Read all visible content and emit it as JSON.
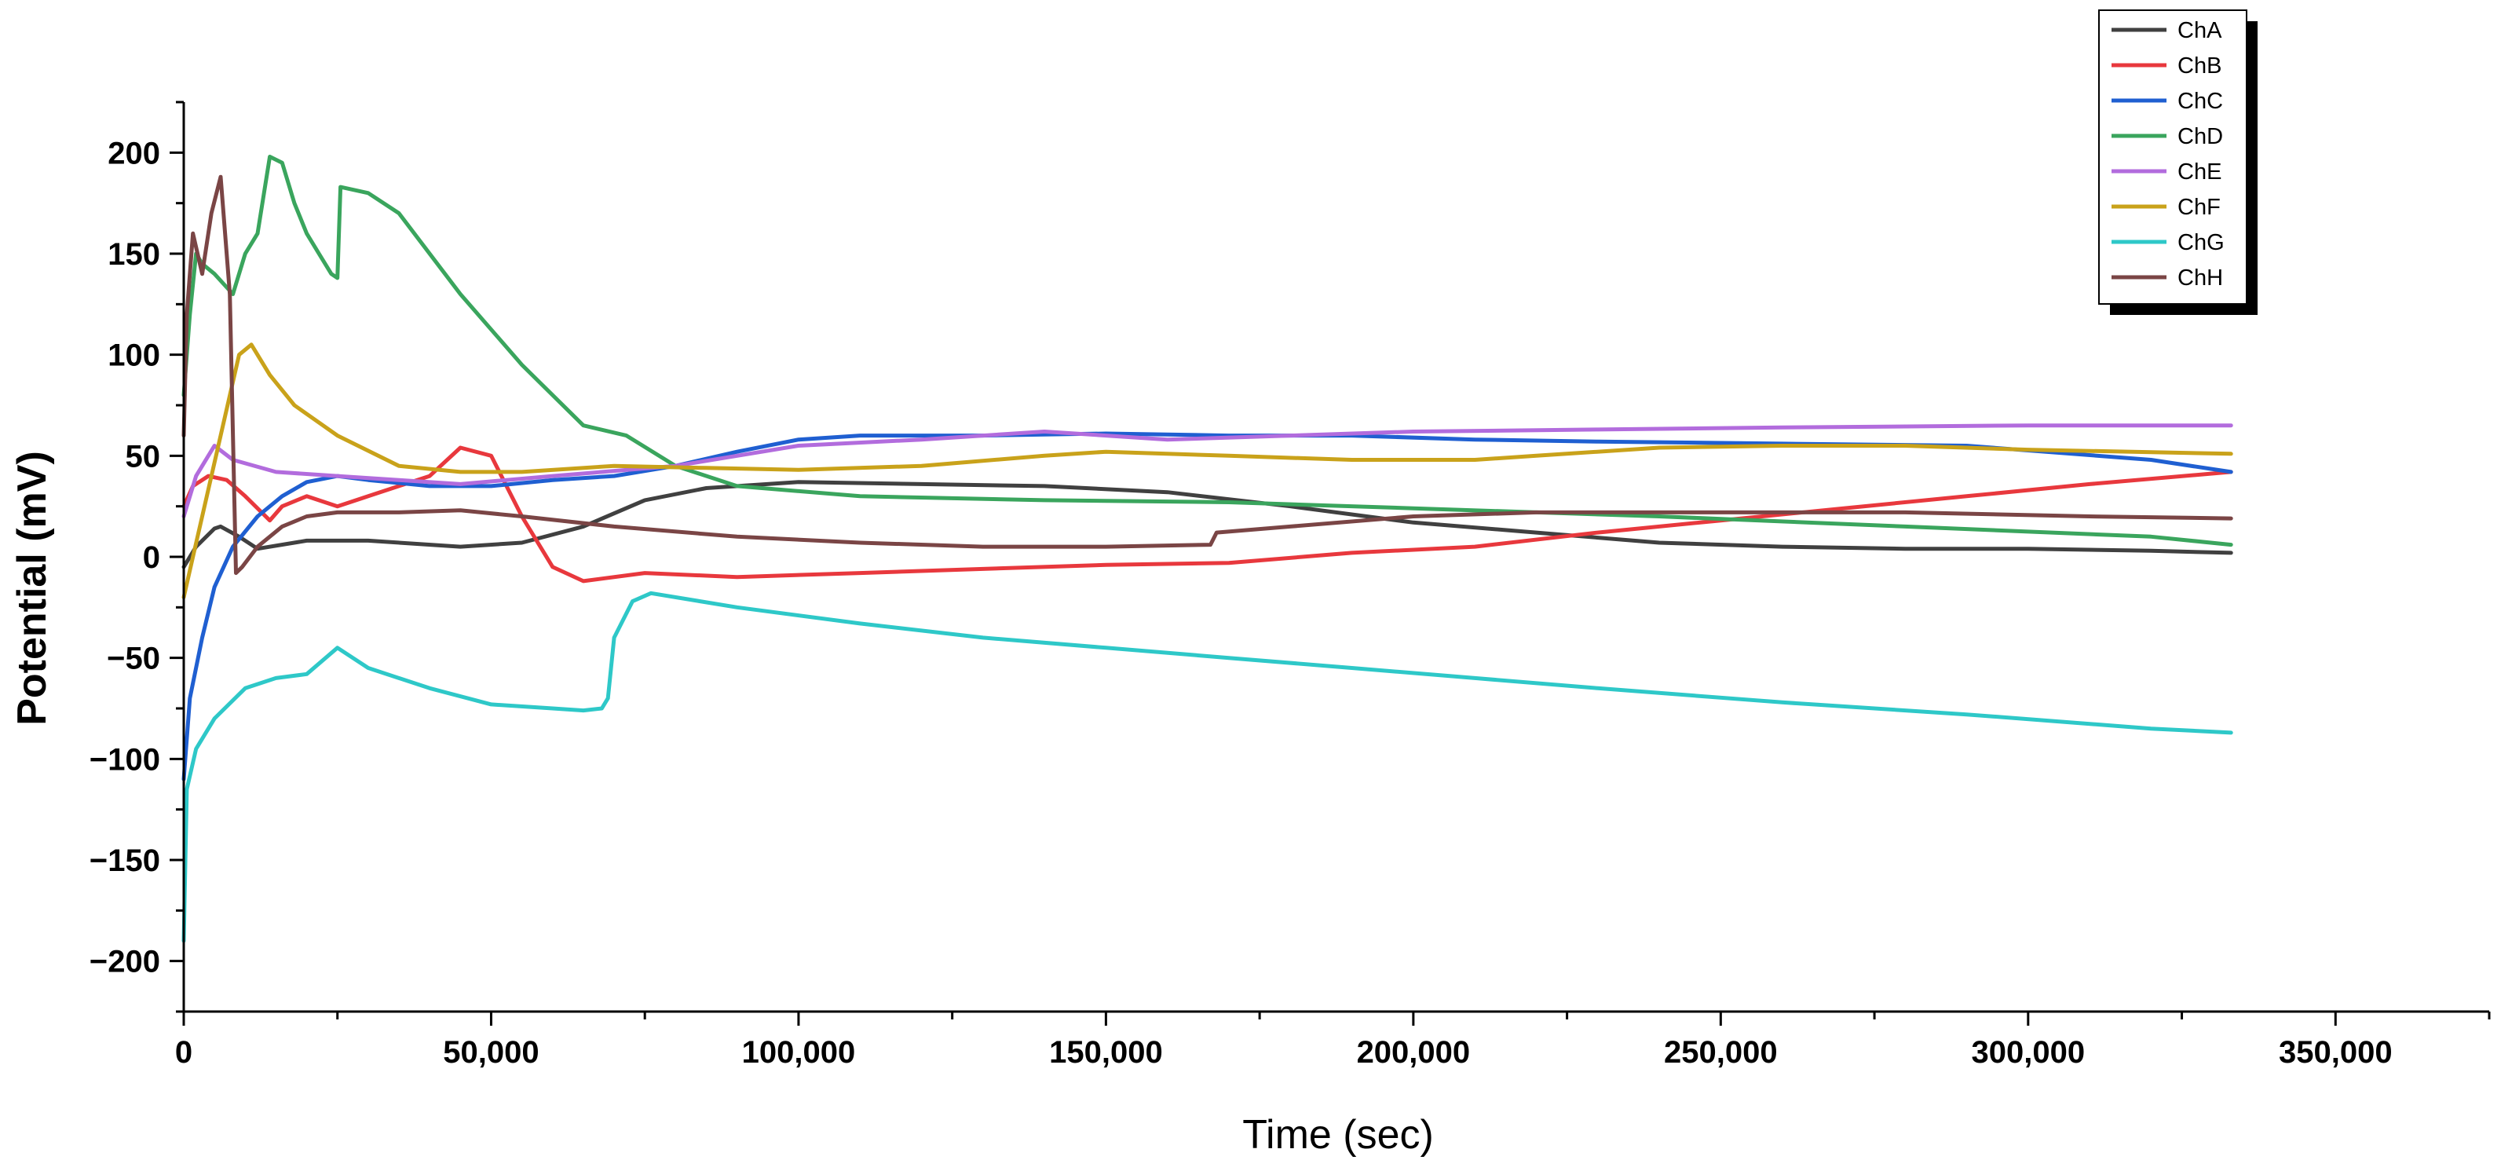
{
  "chart_data": {
    "type": "line",
    "title": "",
    "xlabel": "Time (sec)",
    "ylabel": "Potential (mV)",
    "xlim": [
      0,
      375000
    ],
    "ylim": [
      -225,
      225
    ],
    "x_ticks": [
      0,
      50000,
      100000,
      150000,
      200000,
      250000,
      300000,
      350000
    ],
    "x_tick_labels": [
      "0",
      "50,000",
      "100,000",
      "150,000",
      "200,000",
      "250,000",
      "300,000",
      "350,000"
    ],
    "y_ticks": [
      -200,
      -150,
      -100,
      -50,
      0,
      50,
      100,
      150,
      200
    ],
    "y_tick_labels": [
      "−200",
      "−150",
      "−100",
      "−50",
      "0",
      "50",
      "100",
      "150",
      "200"
    ],
    "grid": false,
    "legend": "top-right",
    "series": [
      {
        "name": "ChA",
        "color": "#404040",
        "x": [
          0,
          2000,
          5000,
          6000,
          9000,
          12000,
          20000,
          30000,
          45000,
          55000,
          65000,
          75000,
          85000,
          100000,
          120000,
          140000,
          160000,
          180000,
          200000,
          220000,
          240000,
          260000,
          280000,
          300000,
          320000,
          333000
        ],
        "y": [
          -5,
          5,
          14,
          15,
          10,
          4,
          8,
          8,
          5,
          7,
          15,
          28,
          34,
          37,
          36,
          35,
          32,
          25,
          17,
          12,
          7,
          5,
          4,
          4,
          3,
          2
        ]
      },
      {
        "name": "ChB",
        "color": "#e8383d",
        "x": [
          0,
          1500,
          4000,
          7000,
          10000,
          14000,
          16000,
          20000,
          25000,
          30000,
          35000,
          40000,
          45000,
          50000,
          55000,
          60000,
          65000,
          75000,
          90000,
          110000,
          130000,
          150000,
          170000,
          190000,
          210000,
          230000,
          250000,
          270000,
          290000,
          310000,
          333000
        ],
        "y": [
          25,
          35,
          40,
          38,
          30,
          18,
          25,
          30,
          25,
          30,
          35,
          40,
          54,
          50,
          20,
          -5,
          -12,
          -8,
          -10,
          -8,
          -6,
          -4,
          -3,
          2,
          5,
          12,
          18,
          24,
          30,
          36,
          42
        ]
      },
      {
        "name": "ChC",
        "color": "#1f5fd1",
        "x": [
          0,
          1000,
          3000,
          5000,
          8000,
          12000,
          16000,
          20000,
          25000,
          30000,
          40000,
          50000,
          60000,
          70000,
          80000,
          90000,
          100000,
          110000,
          130000,
          150000,
          170000,
          190000,
          210000,
          230000,
          260000,
          290000,
          320000,
          333000
        ],
        "y": [
          -110,
          -70,
          -40,
          -15,
          5,
          20,
          30,
          37,
          40,
          38,
          35,
          35,
          38,
          40,
          45,
          52,
          58,
          60,
          60,
          61,
          60,
          60,
          58,
          57,
          56,
          55,
          48,
          42
        ]
      },
      {
        "name": "ChD",
        "color": "#3aa55d",
        "x": [
          0,
          1000,
          2000,
          3000,
          5000,
          8000,
          10000,
          12000,
          14000,
          16000,
          18000,
          20000,
          22000,
          24000,
          25000,
          25500,
          30000,
          35000,
          45000,
          55000,
          65000,
          72000,
          80000,
          90000,
          110000,
          140000,
          170000,
          200000,
          240000,
          280000,
          320000,
          333000
        ],
        "y": [
          80,
          120,
          150,
          145,
          140,
          130,
          150,
          160,
          198,
          195,
          175,
          160,
          150,
          140,
          138,
          183,
          180,
          170,
          130,
          95,
          65,
          60,
          45,
          35,
          30,
          28,
          27,
          24,
          20,
          15,
          10,
          6
        ]
      },
      {
        "name": "ChE",
        "color": "#b26cdd",
        "x": [
          0,
          2000,
          5000,
          8000,
          15000,
          25000,
          35000,
          45000,
          60000,
          80000,
          100000,
          120000,
          140000,
          160000,
          180000,
          200000,
          230000,
          260000,
          300000,
          333000
        ],
        "y": [
          20,
          40,
          55,
          48,
          42,
          40,
          38,
          36,
          40,
          45,
          55,
          58,
          62,
          58,
          60,
          62,
          63,
          64,
          65,
          65
        ]
      },
      {
        "name": "ChF",
        "color": "#c9a21a",
        "x": [
          0,
          1500,
          3000,
          6000,
          9000,
          11000,
          14000,
          18000,
          25000,
          35000,
          45000,
          55000,
          70000,
          85000,
          100000,
          120000,
          140000,
          150000,
          170000,
          190000,
          210000,
          220000,
          240000,
          260000,
          280000,
          300000,
          333000
        ],
        "y": [
          -20,
          0,
          20,
          60,
          100,
          105,
          90,
          75,
          60,
          45,
          42,
          42,
          45,
          44,
          43,
          45,
          50,
          52,
          50,
          48,
          48,
          50,
          54,
          55,
          55,
          53,
          51
        ]
      },
      {
        "name": "ChG",
        "color": "#2ec8c8",
        "x": [
          0,
          500,
          2000,
          5000,
          10000,
          15000,
          20000,
          25000,
          30000,
          40000,
          50000,
          60000,
          65000,
          68000,
          69000,
          70000,
          73000,
          76000,
          90000,
          110000,
          130000,
          150000,
          170000,
          190000,
          210000,
          230000,
          260000,
          290000,
          320000,
          333000
        ],
        "y": [
          -190,
          -115,
          -95,
          -80,
          -65,
          -60,
          -58,
          -45,
          -55,
          -65,
          -73,
          -75,
          -76,
          -75,
          -70,
          -40,
          -22,
          -18,
          -25,
          -33,
          -40,
          -45,
          -50,
          -55,
          -60,
          -65,
          -72,
          -78,
          -85,
          -87
        ]
      },
      {
        "name": "ChH",
        "color": "#7a4545",
        "x": [
          0,
          500,
          1500,
          3000,
          4500,
          6000,
          7500,
          8500,
          9500,
          12000,
          16000,
          20000,
          25000,
          35000,
          45000,
          55000,
          70000,
          90000,
          110000,
          130000,
          150000,
          167000,
          168000,
          180000,
          200000,
          220000,
          250000,
          280000,
          310000,
          333000
        ],
        "y": [
          60,
          120,
          160,
          140,
          170,
          188,
          130,
          -8,
          -5,
          5,
          15,
          20,
          22,
          22,
          23,
          20,
          15,
          10,
          7,
          5,
          5,
          6,
          12,
          15,
          20,
          22,
          22,
          22,
          20,
          19
        ]
      }
    ]
  }
}
